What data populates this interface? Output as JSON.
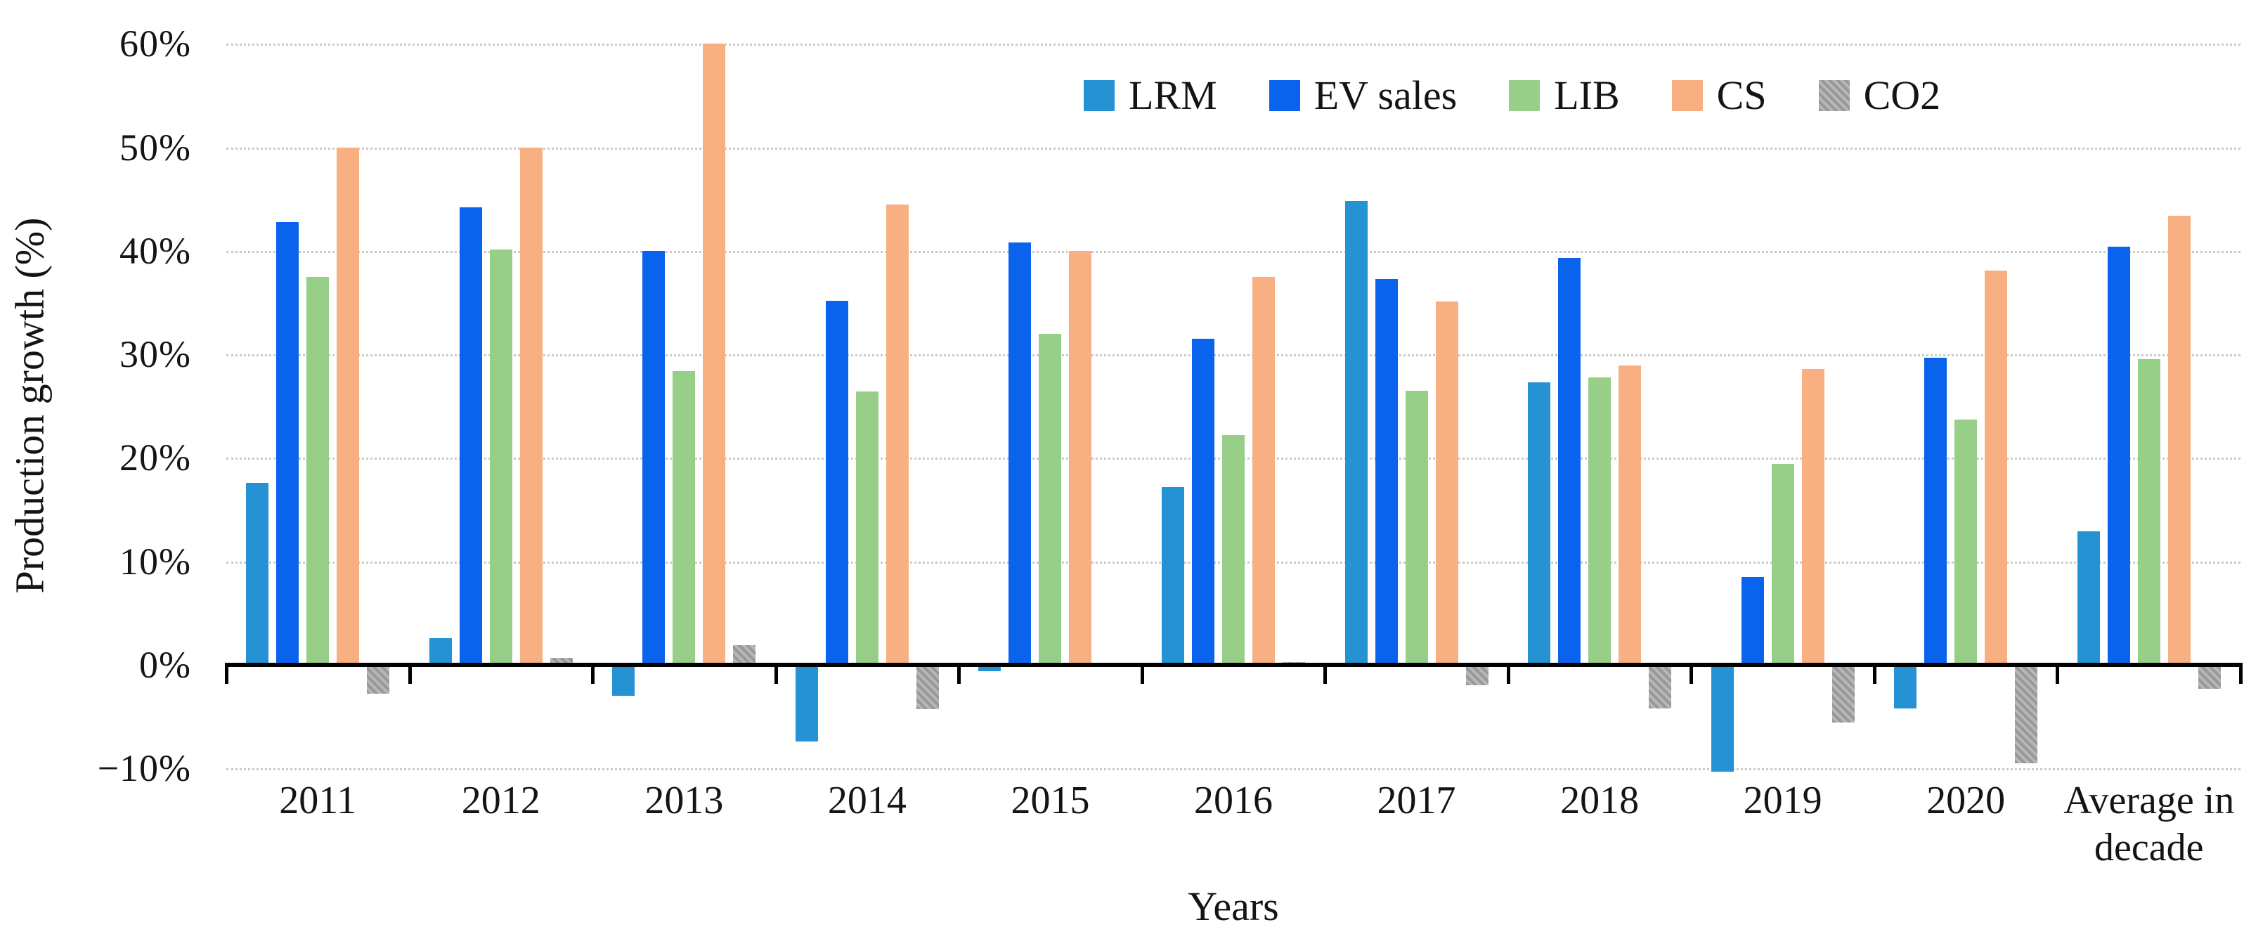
{
  "chart_data": {
    "type": "bar",
    "title": "",
    "xlabel": "Years",
    "ylabel": "Production growth (%)",
    "ylim": [
      -10,
      60
    ],
    "ytick_labels": [
      "60%",
      "50%",
      "40%",
      "30%",
      "20%",
      "10%",
      "0%",
      "−10%"
    ],
    "ytick_values": [
      60,
      50,
      40,
      30,
      20,
      10,
      0,
      -10
    ],
    "grid": "horizontal-dotted-light-gray",
    "legend_position": "top-center-right",
    "categories": [
      "2011",
      "2012",
      "2013",
      "2014",
      "2015",
      "2016",
      "2017",
      "2018",
      "2019",
      "2020",
      "Average in decade"
    ],
    "series": [
      {
        "name": "LRM",
        "color": "#2593d3",
        "hatch": false,
        "values": [
          17.6,
          2.6,
          -3.0,
          -7.4,
          -0.6,
          17.2,
          44.8,
          27.3,
          -10.3,
          -4.2,
          12.9
        ]
      },
      {
        "name": "EV sales",
        "color": "#0a63ec",
        "hatch": false,
        "values": [
          42.8,
          44.2,
          40.0,
          35.2,
          40.8,
          31.5,
          37.3,
          39.3,
          8.5,
          29.7,
          40.4
        ]
      },
      {
        "name": "LIB",
        "color": "#97ce88",
        "hatch": false,
        "values": [
          37.5,
          40.1,
          28.4,
          26.4,
          32.0,
          22.2,
          26.5,
          27.8,
          19.4,
          23.7,
          29.5
        ]
      },
      {
        "name": "CS",
        "color": "#f8b083",
        "hatch": false,
        "values": [
          50.0,
          50.0,
          60.0,
          44.5,
          40.0,
          37.5,
          35.1,
          28.9,
          28.6,
          38.1,
          43.4
        ]
      },
      {
        "name": "CO2",
        "color": "#a8a8a8",
        "hatch": true,
        "values": [
          -2.8,
          0.7,
          1.9,
          -4.3,
          0.0,
          0.3,
          -2.0,
          -4.2,
          -5.6,
          -9.5,
          -2.3
        ]
      }
    ],
    "axis_color": "#000000",
    "gridline_color": "#c9c9c9"
  }
}
